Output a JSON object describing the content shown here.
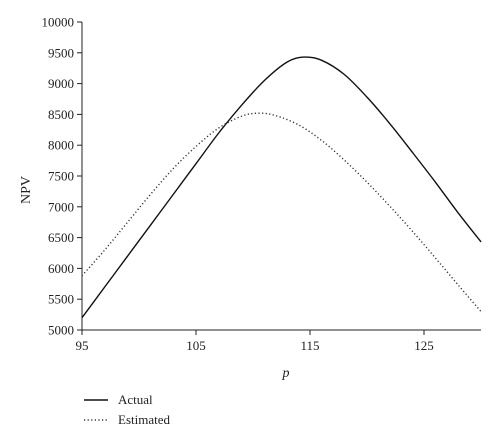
{
  "chart_data": {
    "type": "line",
    "title": "",
    "xlabel": "p",
    "ylabel": "NPV",
    "xlim": [
      95,
      130
    ],
    "ylim": [
      5000,
      10000
    ],
    "x_ticks": [
      95,
      105,
      115,
      125
    ],
    "y_ticks": [
      5000,
      5500,
      6000,
      6500,
      7000,
      7500,
      8000,
      8500,
      9000,
      9500,
      10000
    ],
    "grid": false,
    "legend_position": "bottom-left",
    "series": [
      {
        "name": "Actual",
        "style": "solid",
        "color": "#111111",
        "x": [
          95,
          97,
          99,
          101,
          103,
          105,
          107,
          109,
          111,
          113,
          114.5,
          116,
          118,
          120,
          122,
          124,
          126,
          128,
          130
        ],
        "y": [
          5200,
          5700,
          6200,
          6700,
          7200,
          7700,
          8200,
          8650,
          9050,
          9350,
          9430,
          9380,
          9150,
          8780,
          8350,
          7880,
          7400,
          6900,
          6430
        ]
      },
      {
        "name": "Estimated",
        "style": "dotted",
        "color": "#333333",
        "x": [
          95,
          97,
          99,
          101,
          103,
          105,
          107,
          109,
          110.5,
          112,
          114,
          116,
          118,
          120,
          122,
          124,
          126,
          128,
          130
        ],
        "y": [
          5880,
          6300,
          6750,
          7200,
          7620,
          7980,
          8280,
          8470,
          8520,
          8480,
          8330,
          8080,
          7760,
          7400,
          7010,
          6600,
          6170,
          5730,
          5300
        ]
      }
    ]
  }
}
